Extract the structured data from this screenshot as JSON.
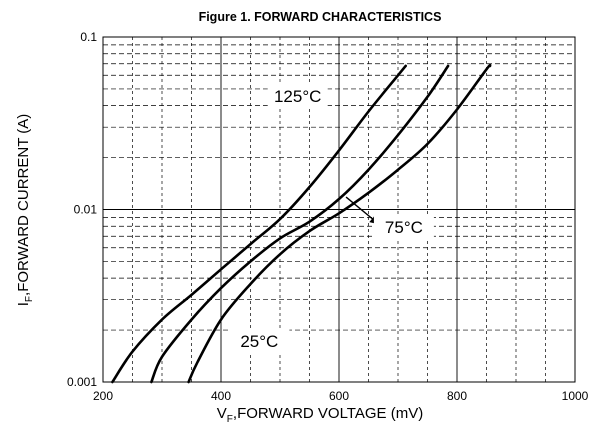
{
  "chart_data": {
    "type": "line",
    "title": "Figure 1. FORWARD CHARACTERISTICS",
    "xlabel": {
      "main": "V",
      "sub": "F",
      "rest": ",FORWARD VOLTAGE (mV)"
    },
    "ylabel": {
      "main": "I",
      "sub": "F",
      "rest": ",FORWARD CURRENT (A)"
    },
    "x_scale": "linear",
    "y_scale": "log",
    "xlim": [
      200,
      1000
    ],
    "ylim": [
      0.001,
      0.1
    ],
    "x_ticks": [
      200,
      400,
      600,
      800,
      1000
    ],
    "x_tick_labels": [
      "200",
      "400",
      "600",
      "800",
      "1000"
    ],
    "y_ticks": [
      0.001,
      0.01,
      0.1
    ],
    "y_tick_labels": [
      "0.001",
      "0.01",
      "0.1"
    ],
    "grid": true,
    "series": [
      {
        "name": "125°C",
        "points": [
          [
            216,
            0.001
          ],
          [
            250,
            0.0015
          ],
          [
            300,
            0.0023
          ],
          [
            350,
            0.0032
          ],
          [
            400,
            0.0045
          ],
          [
            450,
            0.0063
          ],
          [
            500,
            0.0088
          ],
          [
            550,
            0.0135
          ],
          [
            600,
            0.022
          ],
          [
            650,
            0.037
          ],
          [
            700,
            0.06
          ],
          [
            713,
            0.068
          ]
        ]
      },
      {
        "name": "75°C",
        "points": [
          [
            282,
            0.001
          ],
          [
            300,
            0.0014
          ],
          [
            350,
            0.0023
          ],
          [
            400,
            0.0035
          ],
          [
            450,
            0.005
          ],
          [
            500,
            0.0068
          ],
          [
            550,
            0.0085
          ],
          [
            600,
            0.0115
          ],
          [
            650,
            0.017
          ],
          [
            700,
            0.027
          ],
          [
            750,
            0.045
          ],
          [
            785,
            0.068
          ]
        ]
      },
      {
        "name": "25°C",
        "points": [
          [
            345,
            0.001
          ],
          [
            360,
            0.0013
          ],
          [
            400,
            0.0023
          ],
          [
            450,
            0.0037
          ],
          [
            500,
            0.0055
          ],
          [
            550,
            0.0075
          ],
          [
            600,
            0.0095
          ],
          [
            650,
            0.0125
          ],
          [
            700,
            0.017
          ],
          [
            750,
            0.024
          ],
          [
            800,
            0.038
          ],
          [
            850,
            0.065
          ],
          [
            856,
            0.068
          ]
        ]
      }
    ],
    "annotations": [
      {
        "text": "125°C",
        "x": 530,
        "y": 0.045
      },
      {
        "text": "75°C",
        "x": 710,
        "y": 0.0078
      },
      {
        "text": "25°C",
        "x": 465,
        "y": 0.0017
      }
    ]
  }
}
